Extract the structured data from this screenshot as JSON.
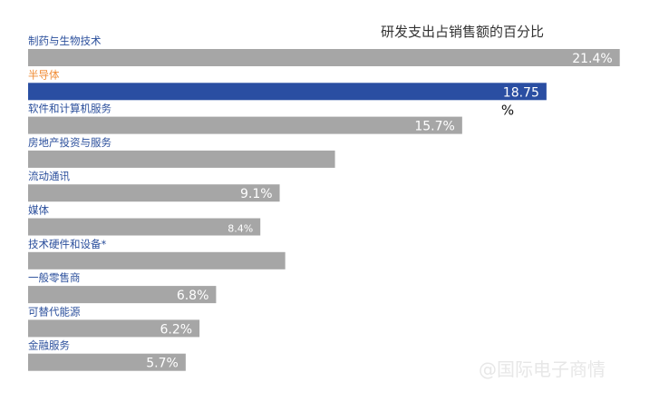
{
  "chart_data": {
    "type": "bar",
    "orientation": "horizontal",
    "title": "研发支出占销售额的百分比",
    "categories": [
      "制药与生物技术",
      "半导体",
      "软件和计算机服务",
      "房地产投资与服务",
      "流动通讯",
      "媒体",
      "技术硬件和设备*",
      "一般零售商",
      "可替代能源",
      "金融服务"
    ],
    "values": [
      21.4,
      18.75,
      15.7,
      11.1,
      9.1,
      8.4,
      9.3,
      6.8,
      6.2,
      5.7
    ],
    "value_labels": [
      "21.4%",
      "18.75",
      "15.7%",
      "",
      "9.1%",
      "8.4%",
      "",
      "6.8%",
      "6.2%",
      "5.7%"
    ],
    "extra_label": "%",
    "highlight_index": 1,
    "xlim": [
      0,
      25
    ],
    "grid": false,
    "legend": "none"
  },
  "colors": {
    "bar": "#a6a6a6",
    "highlight_bar": "#2a4ea2",
    "category_text": "#2b4f9c",
    "highlight_text": "#f08c35"
  },
  "watermark": "@国际电子商情"
}
